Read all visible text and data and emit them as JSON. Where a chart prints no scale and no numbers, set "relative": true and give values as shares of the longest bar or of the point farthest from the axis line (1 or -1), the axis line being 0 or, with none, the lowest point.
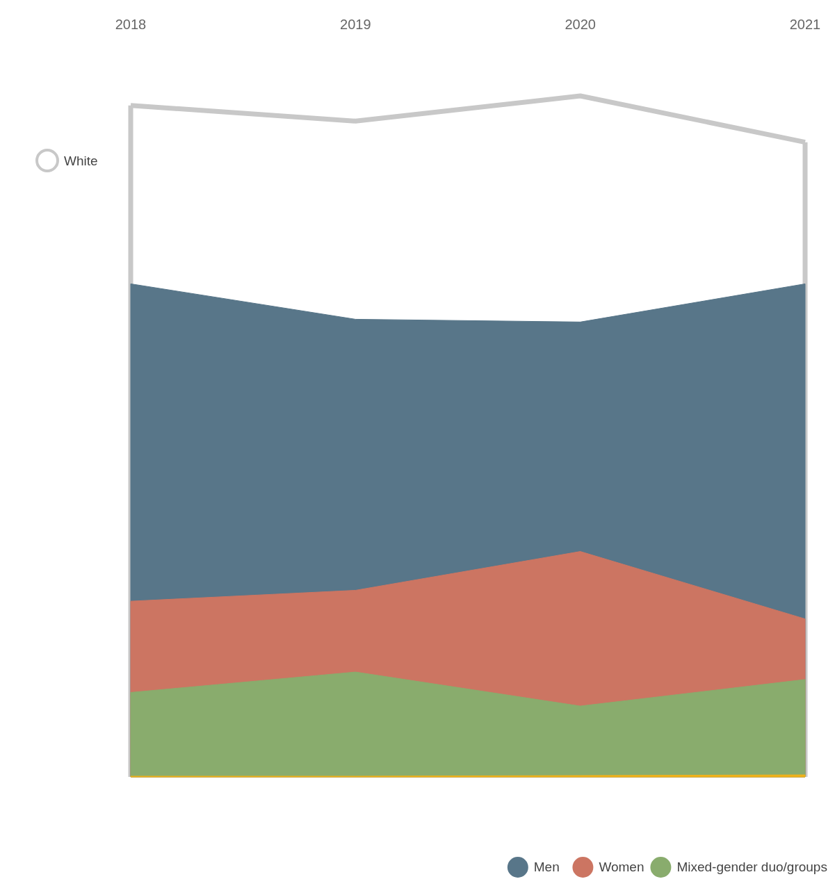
{
  "chart_data": {
    "type": "area",
    "relative": true,
    "categories": [
      "2018",
      "2019",
      "2020",
      "2021"
    ],
    "legend": "bottom",
    "series": [
      {
        "name": "White",
        "type": "line",
        "color": "#c8c8c8",
        "values": [
          0.986,
          0.963,
          1,
          0.932
        ]
      },
      {
        "name": "Men",
        "color": "#587689",
        "values": [
          0.724,
          0.672,
          0.668,
          0.724
        ]
      },
      {
        "name": "Women",
        "color": "#cc7562",
        "values": [
          0.258,
          0.274,
          0.331,
          0.232
        ]
      },
      {
        "name": "Mixed-gender duo/groups",
        "color": "#89ac6d",
        "values": [
          0.124,
          0.154,
          0.104,
          0.143
        ]
      },
      {
        "color": "#efb21b",
        "values": [
          0.001,
          0.001,
          0.002,
          0.003
        ]
      }
    ]
  }
}
